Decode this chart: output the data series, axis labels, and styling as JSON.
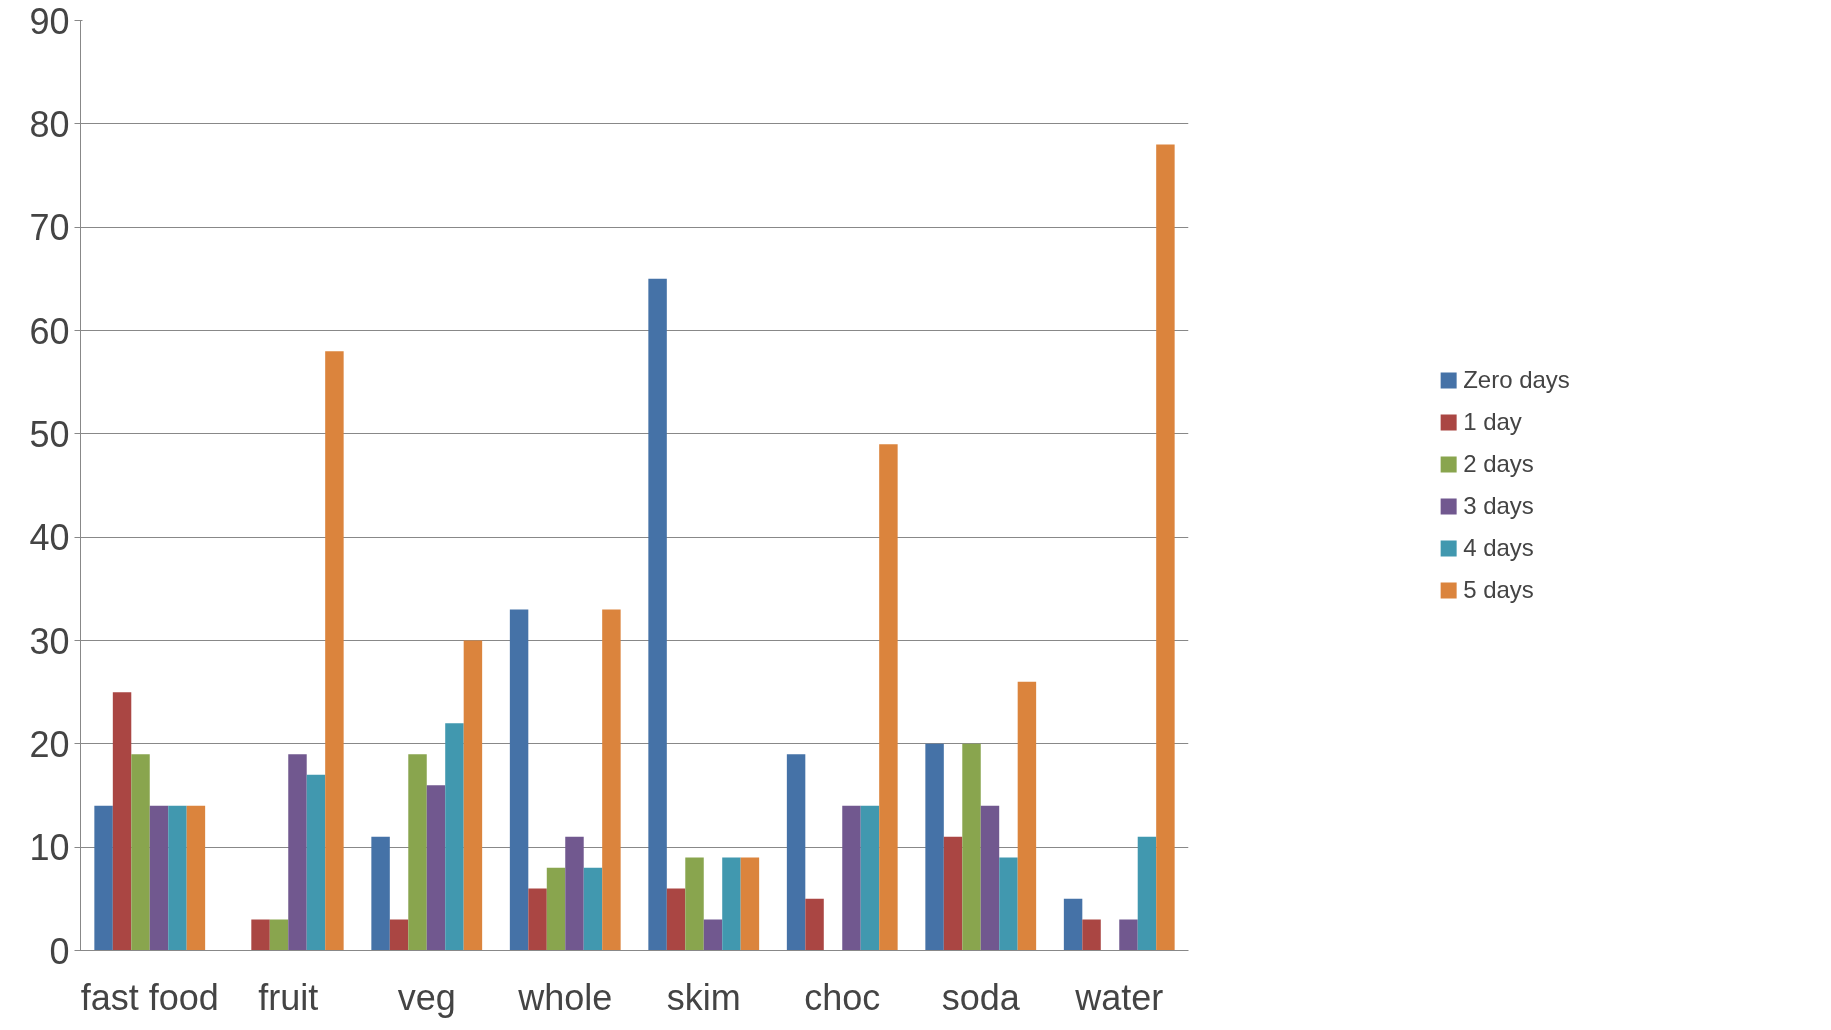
{
  "chart_data": {
    "type": "bar",
    "categories": [
      "fast food",
      "fruit",
      "veg",
      "whole",
      "skim",
      "choc",
      "soda",
      "water"
    ],
    "series": [
      {
        "name": "Zero days",
        "color": "#4572a7",
        "values": [
          14,
          0,
          11,
          33,
          65,
          19,
          20,
          5
        ]
      },
      {
        "name": "1 day",
        "color": "#aa4643",
        "values": [
          25,
          3,
          3,
          6,
          6,
          5,
          11,
          3
        ]
      },
      {
        "name": "2 days",
        "color": "#89a54e",
        "values": [
          19,
          3,
          19,
          8,
          9,
          0,
          20,
          0
        ]
      },
      {
        "name": "3 days",
        "color": "#71588f",
        "values": [
          14,
          19,
          16,
          11,
          3,
          14,
          14,
          3
        ]
      },
      {
        "name": "4 days",
        "color": "#4198af",
        "values": [
          14,
          17,
          22,
          8,
          9,
          14,
          9,
          11
        ]
      },
      {
        "name": "5 days",
        "color": "#db843d",
        "values": [
          14,
          58,
          30,
          33,
          9,
          49,
          26,
          78
        ]
      }
    ],
    "ylim": [
      0,
      90
    ],
    "yticks": [
      0,
      10,
      20,
      30,
      40,
      50,
      60,
      70,
      80,
      90
    ],
    "grid": "y",
    "legend": "right"
  }
}
